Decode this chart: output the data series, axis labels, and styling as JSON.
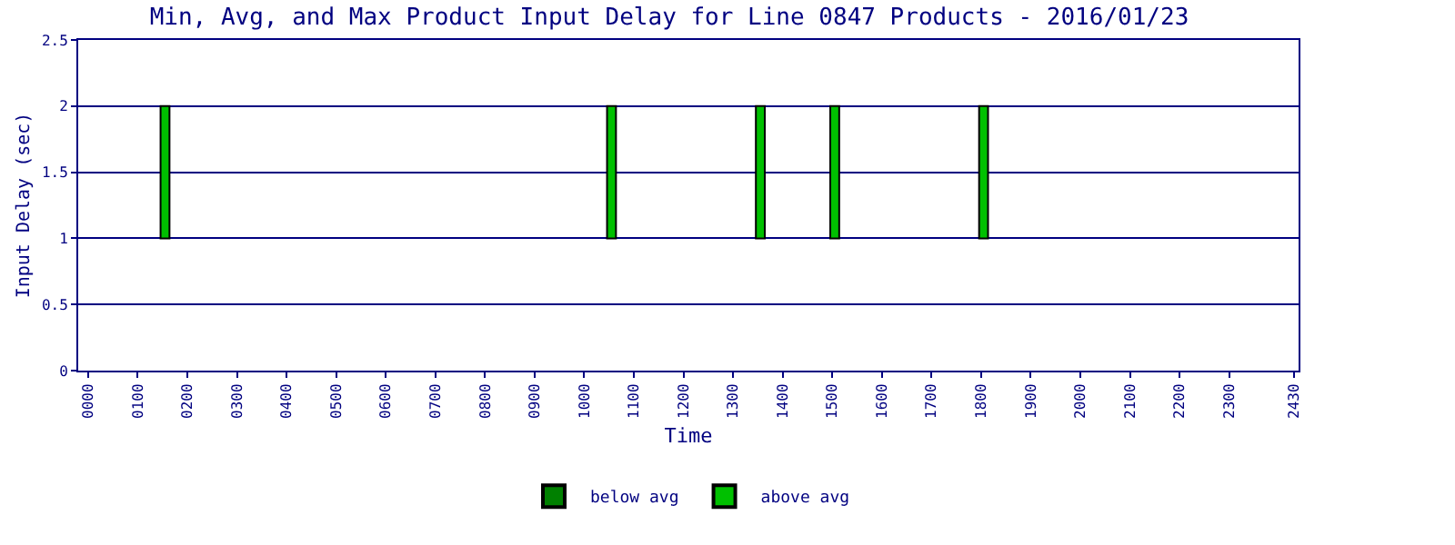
{
  "chart_data": {
    "type": "bar",
    "title": "Min, Avg, and Max Product Input Delay for Line 0847 Products - 2016/01/23",
    "xlabel": "Time",
    "ylabel": "Input Delay (sec)",
    "x": [
      155,
      1055,
      1355,
      1505,
      1805
    ],
    "series": [
      {
        "name": "below avg",
        "color": "#008000",
        "values": [
          null,
          null,
          null,
          null,
          null
        ]
      },
      {
        "name": "above avg",
        "color": "#00c000",
        "values": [
          1,
          1,
          1,
          1,
          1
        ],
        "base": [
          1,
          1,
          1,
          1,
          1
        ]
      }
    ],
    "xlim": [
      -20,
      2440
    ],
    "xticks": [
      {
        "value": 0,
        "label": "0000"
      },
      {
        "value": 100,
        "label": "0100"
      },
      {
        "value": 200,
        "label": "0200"
      },
      {
        "value": 300,
        "label": "0300"
      },
      {
        "value": 400,
        "label": "0400"
      },
      {
        "value": 500,
        "label": "0500"
      },
      {
        "value": 600,
        "label": "0600"
      },
      {
        "value": 700,
        "label": "0700"
      },
      {
        "value": 800,
        "label": "0800"
      },
      {
        "value": 900,
        "label": "0900"
      },
      1000,
      1100,
      1200,
      1300,
      1400,
      1500,
      1600,
      1700,
      1800,
      1900,
      2000,
      2100,
      2200,
      2300,
      2430
    ],
    "ylim": [
      0,
      2.5
    ],
    "yticks": [
      0,
      0.5,
      1,
      1.5,
      2,
      2.5
    ],
    "grid": "y",
    "legend": "bottom"
  }
}
